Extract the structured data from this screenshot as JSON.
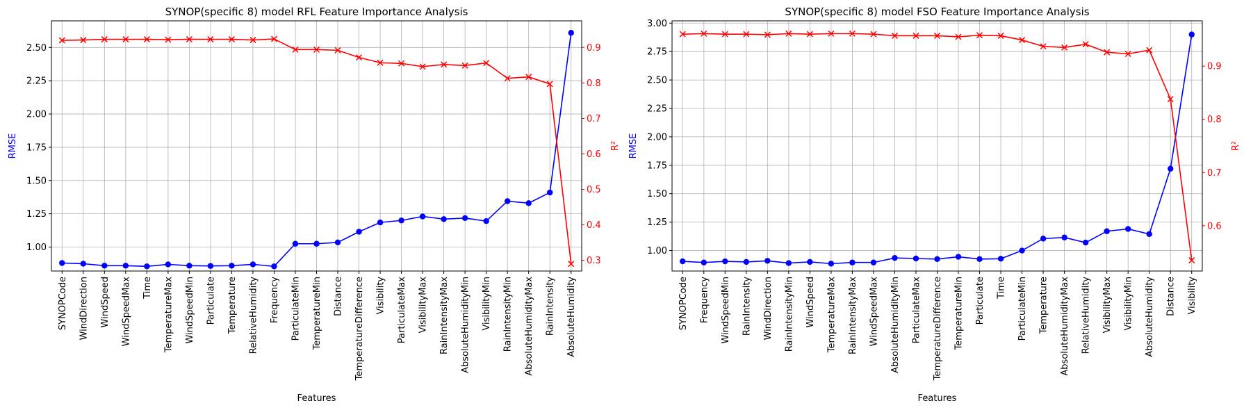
{
  "chart_data": [
    {
      "type": "line",
      "title": "SYNOP(specific 8) model RFL Feature Importance Analysis",
      "xlabel": "Features",
      "ylabel_left": "RMSE",
      "ylabel_right": "R²",
      "left_ylim": [
        0.82,
        2.7
      ],
      "right_ylim": [
        0.27,
        0.975
      ],
      "left_yticks": [
        "1.00",
        "1.25",
        "1.50",
        "1.75",
        "2.00",
        "2.25",
        "2.50"
      ],
      "right_yticks": [
        "0.3",
        "0.4",
        "0.5",
        "0.6",
        "0.7",
        "0.8",
        "0.9"
      ],
      "grid": true,
      "left_axis_color": "#000000",
      "left_label_color": "#0000ff",
      "right_axis_color": "#ff0000",
      "categories": [
        "SYNOPCode",
        "WindDirection",
        "WindSpeed",
        "WindSpeedMax",
        "Time",
        "TemperatureMax",
        "WindSpeedMin",
        "Particulate",
        "Temperature",
        "RelativeHumidity",
        "Frequency",
        "ParticulateMin",
        "TemperatureMin",
        "Distance",
        "TemperatureDifference",
        "Visibility",
        "ParticulateMax",
        "VisibilityMax",
        "RainIntensityMax",
        "AbsoluteHumidityMin",
        "VisibilityMin",
        "RainIntensityMin",
        "AbsoluteHumidityMax",
        "RainIntensity",
        "AbsoluteHumidity"
      ],
      "series": [
        {
          "axis": "left",
          "color": "#0000ff",
          "marker": "circle",
          "values": [
            0.88,
            0.875,
            0.86,
            0.86,
            0.855,
            0.87,
            0.86,
            0.858,
            0.86,
            0.87,
            0.855,
            1.025,
            1.025,
            1.035,
            1.115,
            1.185,
            1.2,
            1.23,
            1.21,
            1.218,
            1.195,
            1.345,
            1.33,
            1.41,
            2.61
          ]
        },
        {
          "axis": "right",
          "color": "#ff0000",
          "marker": "x",
          "values": [
            0.92,
            0.921,
            0.923,
            0.923,
            0.923,
            0.922,
            0.923,
            0.923,
            0.923,
            0.921,
            0.924,
            0.894,
            0.894,
            0.892,
            0.872,
            0.857,
            0.855,
            0.846,
            0.852,
            0.849,
            0.856,
            0.813,
            0.817,
            0.797,
            0.29
          ]
        }
      ]
    },
    {
      "type": "line",
      "title": "SYNOP(specific 8) model FSO Feature Importance Analysis",
      "xlabel": "Features",
      "ylabel_left": "RMSE",
      "ylabel_right": "R²",
      "left_ylim": [
        0.82,
        3.02
      ],
      "right_ylim": [
        0.515,
        0.985
      ],
      "left_yticks": [
        "1.00",
        "1.25",
        "1.50",
        "1.75",
        "2.00",
        "2.25",
        "2.50",
        "2.75",
        "3.00"
      ],
      "right_yticks": [
        "0.6",
        "0.7",
        "0.8",
        "0.9"
      ],
      "grid": true,
      "left_axis_color": "#000000",
      "left_label_color": "#0000ff",
      "right_axis_color": "#ff0000",
      "categories": [
        "SYNOPCode",
        "Frequency",
        "WindSpeedMin",
        "RainIntensity",
        "WindDirection",
        "RainIntensityMin",
        "WindSpeed",
        "TemperatureMax",
        "RainIntensityMax",
        "WindSpeedMax",
        "AbsoluteHumidityMin",
        "ParticulateMax",
        "TemperatureDifference",
        "TemperatureMin",
        "Particulate",
        "Time",
        "ParticulateMin",
        "Temperature",
        "AbsoluteHumidityMax",
        "RelativeHumidity",
        "VisibilityMax",
        "VisibilityMin",
        "AbsoluteHumidity",
        "Distance",
        "Visibility"
      ],
      "series": [
        {
          "axis": "left",
          "color": "#0000ff",
          "marker": "circle",
          "values": [
            0.905,
            0.895,
            0.905,
            0.9,
            0.91,
            0.89,
            0.9,
            0.885,
            0.895,
            0.895,
            0.935,
            0.93,
            0.925,
            0.945,
            0.925,
            0.928,
            1.0,
            1.105,
            1.115,
            1.07,
            1.17,
            1.19,
            1.145,
            1.72,
            2.9
          ]
        },
        {
          "axis": "right",
          "color": "#ff0000",
          "marker": "x",
          "values": [
            0.96,
            0.961,
            0.96,
            0.96,
            0.959,
            0.961,
            0.96,
            0.961,
            0.961,
            0.96,
            0.957,
            0.957,
            0.957,
            0.955,
            0.958,
            0.957,
            0.949,
            0.937,
            0.935,
            0.941,
            0.926,
            0.923,
            0.93,
            0.838,
            0.535
          ]
        }
      ]
    }
  ]
}
